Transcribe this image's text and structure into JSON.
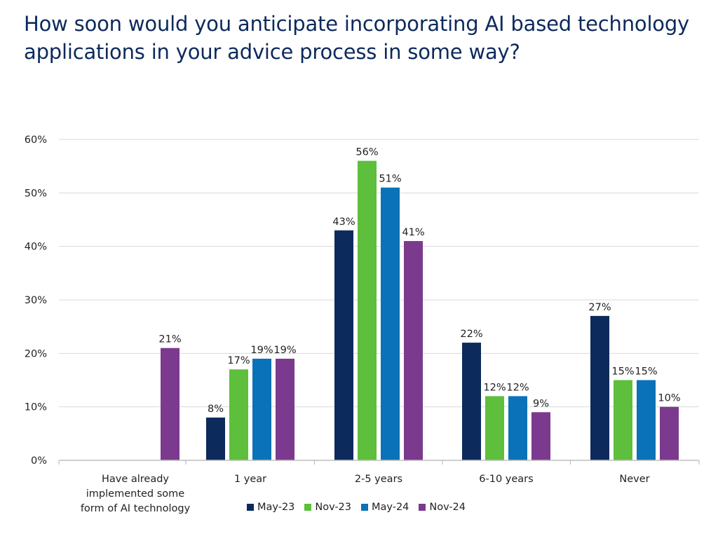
{
  "title": "How soon would you anticipate incorporating AI based technology applications in your advice process in some way?",
  "chart_data": {
    "type": "bar",
    "title": "How soon would you anticipate incorporating AI based technology applications in your advice process in some way?",
    "xlabel": "",
    "ylabel": "",
    "ylim": [
      0,
      60
    ],
    "yticks": [
      0,
      10,
      20,
      30,
      40,
      50,
      60
    ],
    "ytick_labels": [
      "0%",
      "10%",
      "20%",
      "30%",
      "40%",
      "50%",
      "60%"
    ],
    "grid": true,
    "legend_position": "bottom",
    "categories": [
      [
        "Have already",
        "implemented some",
        "form of AI technology"
      ],
      [
        "1 year"
      ],
      [
        "2-5 years"
      ],
      [
        "6-10 years"
      ],
      [
        "Never"
      ]
    ],
    "series": [
      {
        "name": "May-23",
        "color": "#0d2a5c",
        "values": [
          null,
          8,
          43,
          22,
          27
        ],
        "labels": [
          null,
          "8%",
          "43%",
          "22%",
          "27%"
        ]
      },
      {
        "name": "Nov-23",
        "color": "#5dbf3b",
        "values": [
          null,
          17,
          56,
          12,
          15
        ],
        "labels": [
          null,
          "17%",
          "56%",
          "12%",
          "15%"
        ]
      },
      {
        "name": "May-24",
        "color": "#0a72b8",
        "values": [
          null,
          19,
          51,
          12,
          15
        ],
        "labels": [
          null,
          "19%",
          "51%",
          "12%",
          "15%"
        ]
      },
      {
        "name": "Nov-24",
        "color": "#7b3a8e",
        "values": [
          21,
          19,
          41,
          9,
          10
        ],
        "labels": [
          "21%",
          "19%",
          "41%",
          "9%",
          "10%"
        ]
      }
    ]
  }
}
